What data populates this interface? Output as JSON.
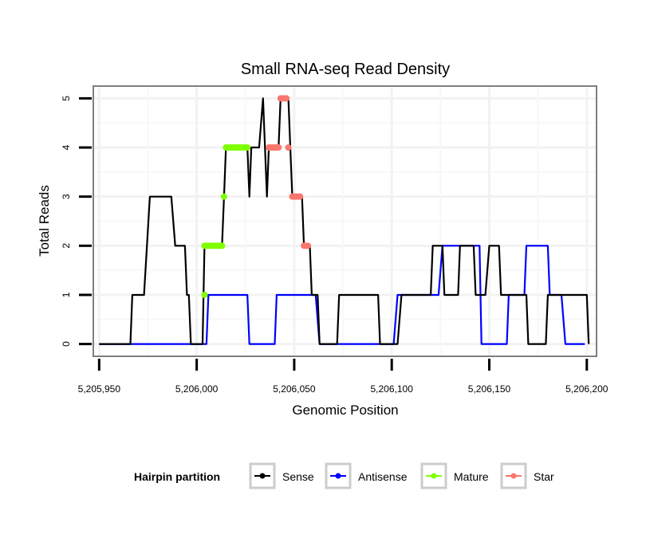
{
  "chart_data": {
    "type": "line",
    "title": "Small RNA-seq Read Density",
    "xlabel": "Genomic Position",
    "ylabel": "Total Reads",
    "xlim": [
      5205947,
      5206205
    ],
    "ylim": [
      -0.25,
      5.25
    ],
    "x_ticks": [
      5205950,
      5206000,
      5206050,
      5206100,
      5206150,
      5206200
    ],
    "x_tick_labels": [
      "5,205,950",
      "5,206,000",
      "5,206,050",
      "5,206,100",
      "5,206,150",
      "5,206,200"
    ],
    "y_ticks": [
      0,
      1,
      2,
      3,
      4,
      5
    ],
    "y_tick_labels": [
      "0",
      "1",
      "2",
      "3",
      "4",
      "5"
    ],
    "grid": true,
    "legend": {
      "title": "Hairpin partition",
      "placement": "bottom",
      "entries": [
        "Sense",
        "Antisense",
        "Mature",
        "Star"
      ]
    },
    "series": [
      {
        "name": "Sense",
        "color": "#000000",
        "points": [
          [
            5205950,
            0
          ],
          [
            5205966,
            0
          ],
          [
            5205967,
            1
          ],
          [
            5205973,
            1
          ],
          [
            5205976,
            3
          ],
          [
            5205987,
            3
          ],
          [
            5205989,
            2
          ],
          [
            5205994,
            2
          ],
          [
            5205995,
            1
          ],
          [
            5205996,
            1
          ],
          [
            5205997,
            0
          ],
          [
            5206003,
            0
          ],
          [
            5206004,
            2
          ],
          [
            5206013,
            2
          ],
          [
            5206014,
            3
          ],
          [
            5206015,
            4
          ],
          [
            5206026,
            4
          ],
          [
            5206027,
            3
          ],
          [
            5206028,
            4
          ],
          [
            5206032,
            4
          ],
          [
            5206034,
            5
          ],
          [
            5206036,
            3
          ],
          [
            5206037,
            4
          ],
          [
            5206042,
            4
          ],
          [
            5206043,
            5
          ],
          [
            5206047,
            5
          ],
          [
            5206048,
            4
          ],
          [
            5206049,
            3
          ],
          [
            5206054,
            3
          ],
          [
            5206055,
            2
          ],
          [
            5206058,
            2
          ],
          [
            5206059,
            1
          ],
          [
            5206062,
            1
          ],
          [
            5206063,
            0
          ],
          [
            5206072,
            0
          ],
          [
            5206073,
            1
          ],
          [
            5206093,
            1
          ],
          [
            5206094,
            0
          ],
          [
            5206103,
            0
          ],
          [
            5206105,
            1
          ],
          [
            5206120,
            1
          ],
          [
            5206121,
            2
          ],
          [
            5206126,
            2
          ],
          [
            5206127,
            1
          ],
          [
            5206134,
            1
          ],
          [
            5206135,
            2
          ],
          [
            5206142,
            2
          ],
          [
            5206143,
            1
          ],
          [
            5206148,
            1
          ],
          [
            5206150,
            2
          ],
          [
            5206155,
            2
          ],
          [
            5206156,
            1
          ],
          [
            5206169,
            1
          ],
          [
            5206170,
            0
          ],
          [
            5206179,
            0
          ],
          [
            5206180,
            1
          ],
          [
            5206200,
            1
          ],
          [
            5206201,
            0
          ]
        ]
      },
      {
        "name": "Antisense",
        "color": "#0000ff",
        "points": [
          [
            5205950,
            0
          ],
          [
            5206005,
            0
          ],
          [
            5206006,
            1
          ],
          [
            5206026,
            1
          ],
          [
            5206027,
            0
          ],
          [
            5206040,
            0
          ],
          [
            5206041,
            1
          ],
          [
            5206061,
            1
          ],
          [
            5206063,
            0
          ],
          [
            5206101,
            0
          ],
          [
            5206103,
            1
          ],
          [
            5206124,
            1
          ],
          [
            5206126,
            2
          ],
          [
            5206145,
            2
          ],
          [
            5206146,
            0
          ],
          [
            5206159,
            0
          ],
          [
            5206160,
            1
          ],
          [
            5206168,
            1
          ],
          [
            5206169,
            2
          ],
          [
            5206180,
            2
          ],
          [
            5206181,
            1
          ],
          [
            5206187,
            1
          ],
          [
            5206189,
            0
          ],
          [
            5206199,
            0
          ]
        ]
      },
      {
        "name": "Mature",
        "color": "#7fff00",
        "points": [
          [
            5206004,
            1
          ],
          [
            5206004,
            2
          ],
          [
            5206005,
            2
          ],
          [
            5206006,
            2
          ],
          [
            5206007,
            2
          ],
          [
            5206008,
            2
          ],
          [
            5206009,
            2
          ],
          [
            5206010,
            2
          ],
          [
            5206011,
            2
          ],
          [
            5206012,
            2
          ],
          [
            5206013,
            2
          ],
          [
            5206014,
            3
          ],
          [
            5206015,
            4
          ],
          [
            5206016,
            4
          ],
          [
            5206017,
            4
          ],
          [
            5206018,
            4
          ],
          [
            5206019,
            4
          ],
          [
            5206020,
            4
          ],
          [
            5206021,
            4
          ],
          [
            5206022,
            4
          ],
          [
            5206023,
            4
          ],
          [
            5206024,
            4
          ],
          [
            5206025,
            4
          ],
          [
            5206026,
            4
          ]
        ]
      },
      {
        "name": "Star",
        "color": "#f8766d",
        "points": [
          [
            5206037,
            4
          ],
          [
            5206038,
            4
          ],
          [
            5206039,
            4
          ],
          [
            5206040,
            4
          ],
          [
            5206041,
            4
          ],
          [
            5206042,
            4
          ],
          [
            5206043,
            5
          ],
          [
            5206044,
            5
          ],
          [
            5206045,
            5
          ],
          [
            5206046,
            5
          ],
          [
            5206047,
            4
          ],
          [
            5206049,
            3
          ],
          [
            5206050,
            3
          ],
          [
            5206051,
            3
          ],
          [
            5206052,
            3
          ],
          [
            5206053,
            3
          ],
          [
            5206055,
            2
          ],
          [
            5206056,
            2
          ],
          [
            5206057,
            2
          ]
        ]
      }
    ]
  }
}
